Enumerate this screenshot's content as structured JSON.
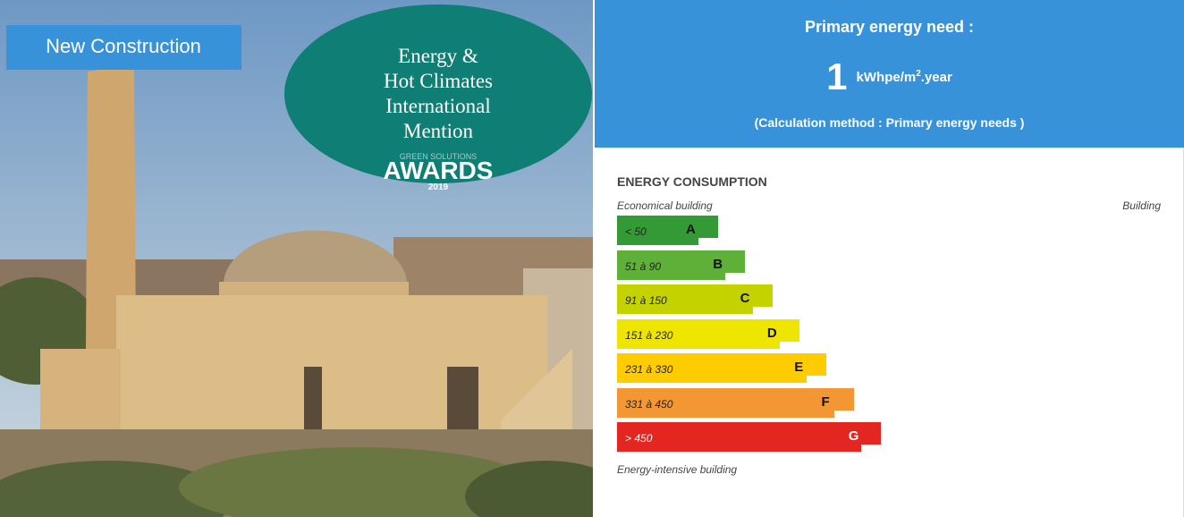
{
  "photo": {
    "badge": "New Construction",
    "award": {
      "lines": [
        "Energy &",
        "Hot Climates",
        "International",
        "Mention"
      ],
      "org": "GREEN SOLUTIONS",
      "title": "AWARDS",
      "year": "2019"
    }
  },
  "header": {
    "title": "Primary energy need :",
    "value": "1",
    "unit": "kWhpe/m",
    "unit_sup": "2",
    "unit_suffix": ".year",
    "method": "(Calculation method : Primary energy needs )"
  },
  "scale": {
    "title": "ENERGY CONSUMPTION",
    "top_left": "Economical building",
    "top_right": "Building",
    "bottom": "Energy-intensive building",
    "classes": [
      {
        "range": "< 50",
        "letter": "A",
        "color": "#349a36"
      },
      {
        "range": "51 à 90",
        "letter": "B",
        "color": "#5fb038"
      },
      {
        "range": "91 à 150",
        "letter": "C",
        "color": "#c4d200"
      },
      {
        "range": "151 à 230",
        "letter": "D",
        "color": "#eee600"
      },
      {
        "range": "231 à 330",
        "letter": "E",
        "color": "#fecc00"
      },
      {
        "range": "331 à 450",
        "letter": "F",
        "color": "#f39734"
      },
      {
        "range": "> 450",
        "letter": "G",
        "color": "#e3261f"
      }
    ]
  }
}
